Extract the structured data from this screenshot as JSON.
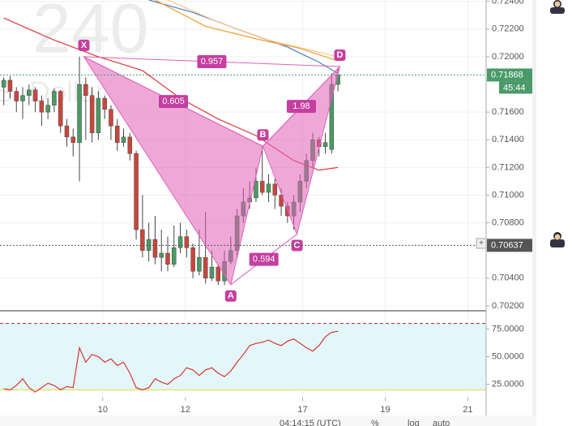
{
  "chart_data": [
    {
      "type": "candlestick",
      "watermark": [
        "240",
        "S. Dollar"
      ],
      "up_color": "#4a9a63",
      "down_color": "#c9463d",
      "x": [
        0,
        1,
        2,
        3,
        4,
        5,
        6,
        7,
        8,
        9,
        10,
        11,
        12,
        13,
        14,
        15,
        16,
        17,
        18,
        19,
        20,
        21,
        22,
        23,
        24,
        25,
        26,
        27,
        28,
        29,
        30,
        31,
        32,
        33,
        34,
        35,
        36,
        37,
        38,
        39,
        40,
        41,
        42,
        43,
        44,
        45,
        46,
        47,
        48,
        49,
        50,
        51,
        52,
        53
      ],
      "open": [
        0.7178,
        0.7183,
        0.7175,
        0.7168,
        0.7172,
        0.7176,
        0.7168,
        0.716,
        0.7165,
        0.7175,
        0.715,
        0.7142,
        0.7138,
        0.718,
        0.7172,
        0.7145,
        0.717,
        0.7162,
        0.715,
        0.7138,
        0.7142,
        0.713,
        0.7075,
        0.706,
        0.7068,
        0.7055,
        0.7058,
        0.705,
        0.7062,
        0.707,
        0.7062,
        0.7045,
        0.7055,
        0.704,
        0.7048,
        0.7038,
        0.7052,
        0.706,
        0.7085,
        0.7095,
        0.7098,
        0.711,
        0.7102,
        0.7108,
        0.71,
        0.7092,
        0.7085,
        0.7095,
        0.711,
        0.7125,
        0.714,
        0.7135,
        0.7133,
        0.718
      ],
      "high": [
        0.7185,
        0.7186,
        0.7178,
        0.7178,
        0.718,
        0.7178,
        0.7172,
        0.717,
        0.7177,
        0.7176,
        0.7155,
        0.7148,
        0.72,
        0.7185,
        0.7178,
        0.7175,
        0.7172,
        0.7165,
        0.7155,
        0.7148,
        0.7145,
        0.7132,
        0.71,
        0.708,
        0.7085,
        0.7075,
        0.707,
        0.7078,
        0.708,
        0.7075,
        0.7065,
        0.7075,
        0.7088,
        0.706,
        0.705,
        0.706,
        0.707,
        0.709,
        0.7105,
        0.711,
        0.712,
        0.7135,
        0.7115,
        0.7112,
        0.7105,
        0.7095,
        0.71,
        0.7115,
        0.713,
        0.7145,
        0.7142,
        0.7145,
        0.7188,
        0.7192
      ],
      "low": [
        0.7165,
        0.717,
        0.716,
        0.7155,
        0.7165,
        0.716,
        0.715,
        0.7155,
        0.716,
        0.7145,
        0.7135,
        0.7128,
        0.711,
        0.714,
        0.7138,
        0.714,
        0.7155,
        0.714,
        0.7132,
        0.7135,
        0.7125,
        0.7068,
        0.7055,
        0.7052,
        0.705,
        0.7045,
        0.7045,
        0.7048,
        0.7058,
        0.7055,
        0.704,
        0.7042,
        0.7036,
        0.7038,
        0.7035,
        0.7035,
        0.705,
        0.7055,
        0.708,
        0.709,
        0.7095,
        0.71,
        0.7095,
        0.709,
        0.7085,
        0.708,
        0.7075,
        0.7088,
        0.7105,
        0.712,
        0.7128,
        0.713,
        0.713,
        0.7175
      ],
      "close": [
        0.7183,
        0.7175,
        0.7168,
        0.7172,
        0.7176,
        0.7168,
        0.716,
        0.7165,
        0.7175,
        0.715,
        0.7142,
        0.7138,
        0.718,
        0.7172,
        0.7145,
        0.717,
        0.7162,
        0.715,
        0.7138,
        0.7142,
        0.713,
        0.7075,
        0.706,
        0.7068,
        0.7055,
        0.7058,
        0.705,
        0.7062,
        0.707,
        0.7062,
        0.7045,
        0.7055,
        0.704,
        0.7048,
        0.7038,
        0.7052,
        0.706,
        0.7085,
        0.7095,
        0.7098,
        0.711,
        0.7102,
        0.7108,
        0.71,
        0.7092,
        0.7085,
        0.7095,
        0.711,
        0.7125,
        0.714,
        0.7135,
        0.7138,
        0.718,
        0.7187
      ],
      "xlim": [
        -0.6,
        76.5
      ],
      "xticks": [
        {
          "value": 15.7,
          "label": "10"
        },
        {
          "value": 28.8,
          "label": "12"
        },
        {
          "value": 47.4,
          "label": "17"
        },
        {
          "value": 60.5,
          "label": "19"
        },
        {
          "value": 73.6,
          "label": "21"
        }
      ],
      "ylim": [
        0.7017,
        0.7241
      ],
      "yticks": [
        {
          "value": 0.724,
          "label": "0.72400"
        },
        {
          "value": 0.722,
          "label": "0.72200"
        },
        {
          "value": 0.72,
          "label": "0.72000"
        },
        {
          "value": 0.716,
          "label": "0.71600"
        },
        {
          "value": 0.714,
          "label": "0.71400"
        },
        {
          "value": 0.712,
          "label": "0.71200"
        },
        {
          "value": 0.71,
          "label": "0.71000"
        },
        {
          "value": 0.708,
          "label": "0.70800"
        },
        {
          "value": 0.704,
          "label": "0.70400"
        },
        {
          "value": 0.702,
          "label": "0.70200"
        }
      ],
      "overlays": [
        {
          "color": "#e03a3a",
          "x": [
            0,
            8,
            15,
            22,
            28,
            34,
            40,
            46,
            50,
            53
          ],
          "values": [
            0.7228,
            0.7212,
            0.72,
            0.719,
            0.717,
            0.7155,
            0.7143,
            0.7125,
            0.7118,
            0.712
          ]
        },
        {
          "color": "#4a7fc1",
          "x": [
            23,
            30,
            37,
            45,
            50,
            53
          ],
          "values": [
            0.7241,
            0.7232,
            0.722,
            0.7207,
            0.7196,
            0.7188
          ]
        },
        {
          "color": "#f39c2b",
          "x": [
            24,
            32,
            40,
            47,
            53
          ],
          "values": [
            0.7241,
            0.7222,
            0.7213,
            0.7206,
            0.7197
          ]
        },
        {
          "color": "#f7c58a",
          "x": [
            26,
            34,
            42,
            53
          ],
          "values": [
            0.7241,
            0.7225,
            0.7212,
            0.72
          ]
        }
      ],
      "pattern": {
        "color": "#e060b8",
        "points": [
          {
            "label": "X",
            "x": 12.7,
            "value": 0.72
          },
          {
            "label": "A",
            "x": 36,
            "value": 0.70353
          },
          {
            "label": "B",
            "x": 41.1,
            "value": 0.71353
          },
          {
            "label": "C",
            "x": 46.5,
            "value": 0.70718
          },
          {
            "label": "D",
            "x": 53.3,
            "value": 0.71929
          }
        ],
        "ratios": [
          {
            "from": 0,
            "to": 4,
            "value": 0.957
          },
          {
            "from": 0,
            "to": 2,
            "value": 0.605
          },
          {
            "from": 1,
            "to": 3,
            "value": 0.594
          },
          {
            "from": 2,
            "to": 4,
            "value": 1.98
          }
        ]
      },
      "price_lines": [
        {
          "value": 0.71868,
          "color": "#4a9a6a",
          "countdown": "45:44"
        },
        {
          "value": 0.70637,
          "color": "#555555"
        }
      ]
    },
    {
      "type": "line",
      "color": "#d9352b",
      "values": [
        21,
        20,
        24,
        30,
        22,
        18,
        22,
        26,
        24,
        20,
        23,
        22,
        58,
        45,
        52,
        50,
        45,
        48,
        42,
        45,
        35,
        22,
        20,
        22,
        30,
        27,
        25,
        30,
        33,
        40,
        38,
        33,
        38,
        40,
        35,
        32,
        37,
        45,
        52,
        60,
        62,
        63,
        65,
        62,
        60,
        64,
        66,
        62,
        58,
        55,
        60,
        68,
        72,
        73
      ],
      "ylim": [
        13,
        90
      ],
      "yticks": [
        {
          "value": 75,
          "label": "75.0000"
        },
        {
          "value": 50,
          "label": "50.0000"
        },
        {
          "value": 25,
          "label": "25.0000"
        }
      ],
      "levels": [
        {
          "value": 80,
          "color": "#b22222"
        },
        {
          "value": 20,
          "color": "#e8d94a"
        }
      ],
      "band_color": "#e3f7fb"
    }
  ],
  "toolbar": {
    "time": "04:14:15 (UTC)",
    "buttons": [
      "%",
      "log",
      "auto"
    ]
  }
}
